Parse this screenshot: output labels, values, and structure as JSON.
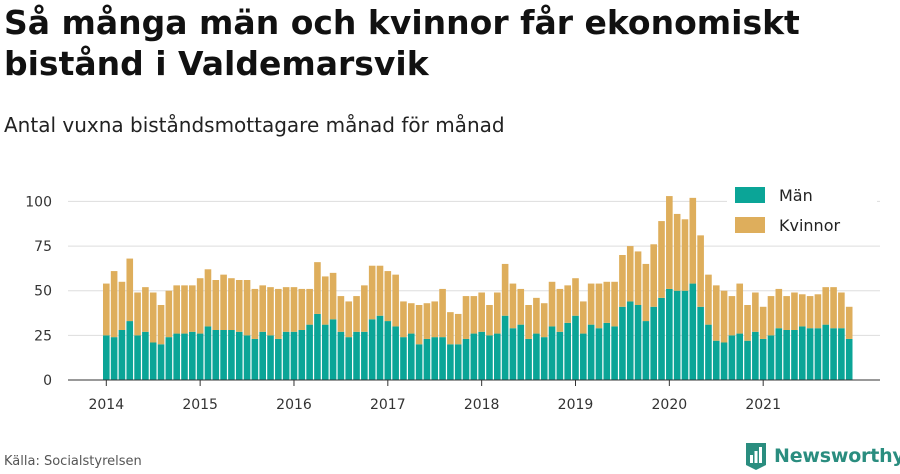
{
  "title": "Så många män och kvinnor får ekonomiskt bistånd i Valdemarsvik",
  "subtitle": "Antal vuxna biståndsmottagare månad för månad",
  "source": "Källa: Socialstyrelsen",
  "brand": {
    "name": "Newsworthy",
    "icon": "newsworthy-logo-icon",
    "color": "#2a8d7f"
  },
  "colors": {
    "men": "#0ba597",
    "women": "#deae5c",
    "grid": "#dddddd",
    "axis": "#333333"
  },
  "chart_data": {
    "type": "bar",
    "stacked": true,
    "ylim": [
      0,
      112
    ],
    "yticks": [
      0,
      25,
      50,
      75,
      100
    ],
    "xtick_labels": [
      "2014",
      "2015",
      "2016",
      "2017",
      "2018",
      "2019",
      "2020",
      "2021"
    ],
    "start": "2014-01",
    "legend_position": "top-right",
    "grid": "horizontal",
    "series": [
      {
        "name": "Män",
        "color": "#0ba597",
        "values": [
          25,
          24,
          28,
          33,
          25,
          27,
          21,
          20,
          24,
          26,
          26,
          27,
          26,
          30,
          28,
          28,
          28,
          27,
          25,
          23,
          27,
          25,
          23,
          27,
          27,
          28,
          31,
          37,
          31,
          34,
          27,
          24,
          27,
          27,
          34,
          36,
          33,
          30,
          24,
          26,
          20,
          23,
          24,
          24,
          20,
          20,
          23,
          26,
          27,
          25,
          26,
          36,
          29,
          31,
          23,
          26,
          24,
          30,
          27,
          32,
          36,
          26,
          31,
          29,
          32,
          30,
          41,
          44,
          42,
          33,
          41,
          46,
          51,
          50,
          50,
          54,
          41,
          31,
          22,
          21,
          25,
          26,
          22,
          27,
          23,
          25,
          29,
          28,
          28,
          30,
          29,
          29,
          31,
          29,
          29,
          23
        ]
      },
      {
        "name": "Kvinnor",
        "color": "#deae5c",
        "values": [
          29,
          37,
          27,
          35,
          24,
          25,
          28,
          22,
          26,
          27,
          27,
          26,
          31,
          32,
          28,
          31,
          29,
          29,
          31,
          28,
          26,
          27,
          28,
          25,
          25,
          23,
          20,
          29,
          27,
          26,
          20,
          20,
          20,
          26,
          30,
          28,
          28,
          29,
          20,
          17,
          22,
          20,
          20,
          27,
          18,
          17,
          24,
          21,
          22,
          17,
          23,
          29,
          25,
          20,
          19,
          20,
          19,
          25,
          24,
          21,
          21,
          18,
          23,
          25,
          23,
          25,
          29,
          31,
          30,
          32,
          35,
          43,
          52,
          43,
          40,
          48,
          40,
          28,
          31,
          29,
          22,
          28,
          20,
          22,
          18,
          22,
          22,
          19,
          21,
          18,
          18,
          19,
          21,
          23,
          20,
          18
        ]
      }
    ]
  }
}
